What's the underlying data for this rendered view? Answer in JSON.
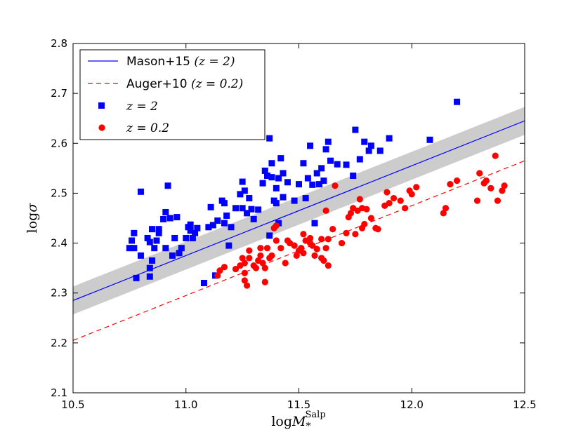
{
  "chart_data": {
    "type": "scatter",
    "title": "",
    "xlabel": {
      "base": "log",
      "symbol": "M",
      "sub": "*",
      "sup": "Salp"
    },
    "ylabel": {
      "base": "log",
      "symbol": "σ"
    },
    "xlim": [
      10.5,
      12.5
    ],
    "ylim": [
      2.1,
      2.8
    ],
    "xticks": [
      "10.5",
      "11.0",
      "11.5",
      "12.0",
      "12.5"
    ],
    "yticks": [
      "2.1",
      "2.2",
      "2.3",
      "2.4",
      "2.5",
      "2.6",
      "2.7",
      "2.8"
    ],
    "legend_position": "top-left",
    "lines": [
      {
        "name": "mason15",
        "label": "Mason+15 ",
        "math": "(z = 2)",
        "color": "#0000ff",
        "style": "solid",
        "x": [
          10.5,
          12.5
        ],
        "y": [
          2.285,
          2.645
        ],
        "band_halfwidth": 0.028,
        "band_color": "#cccccc"
      },
      {
        "name": "auger10",
        "label": "Auger+10 ",
        "math": "(z = 0.2)",
        "color": "#ff0000",
        "style": "dashed",
        "x": [
          10.5,
          12.5
        ],
        "y": [
          2.205,
          2.565
        ]
      }
    ],
    "series": [
      {
        "name": "z2",
        "label": "z = 2",
        "marker": "square",
        "color": "#0000ff",
        "points": [
          [
            10.75,
            2.39
          ],
          [
            10.76,
            2.405
          ],
          [
            10.77,
            2.42
          ],
          [
            10.77,
            2.39
          ],
          [
            10.78,
            2.33
          ],
          [
            10.8,
            2.503
          ],
          [
            10.8,
            2.375
          ],
          [
            10.83,
            2.41
          ],
          [
            10.84,
            2.402
          ],
          [
            10.84,
            2.333
          ],
          [
            10.84,
            2.35
          ],
          [
            10.85,
            2.365
          ],
          [
            10.85,
            2.428
          ],
          [
            10.86,
            2.39
          ],
          [
            10.87,
            2.405
          ],
          [
            10.88,
            2.428
          ],
          [
            10.88,
            2.42
          ],
          [
            10.9,
            2.448
          ],
          [
            10.91,
            2.462
          ],
          [
            10.91,
            2.39
          ],
          [
            10.92,
            2.515
          ],
          [
            10.93,
            2.45
          ],
          [
            10.94,
            2.375
          ],
          [
            10.95,
            2.41
          ],
          [
            10.96,
            2.452
          ],
          [
            10.97,
            2.38
          ],
          [
            10.98,
            2.39
          ],
          [
            11.0,
            2.41
          ],
          [
            11.01,
            2.432
          ],
          [
            11.02,
            2.437
          ],
          [
            11.02,
            2.425
          ],
          [
            11.03,
            2.41
          ],
          [
            11.04,
            2.42
          ],
          [
            11.05,
            2.43
          ],
          [
            11.08,
            2.32
          ],
          [
            11.1,
            2.432
          ],
          [
            11.11,
            2.472
          ],
          [
            11.12,
            2.436
          ],
          [
            11.14,
            2.445
          ],
          [
            11.16,
            2.485
          ],
          [
            11.17,
            2.48
          ],
          [
            11.17,
            2.44
          ],
          [
            11.18,
            2.455
          ],
          [
            11.19,
            2.395
          ],
          [
            11.2,
            2.432
          ],
          [
            11.22,
            2.47
          ],
          [
            11.24,
            2.498
          ],
          [
            11.25,
            2.523
          ],
          [
            11.25,
            2.47
          ],
          [
            11.26,
            2.505
          ],
          [
            11.27,
            2.46
          ],
          [
            11.28,
            2.49
          ],
          [
            11.29,
            2.468
          ],
          [
            11.3,
            2.448
          ],
          [
            11.32,
            2.467
          ],
          [
            11.34,
            2.52
          ],
          [
            11.35,
            2.545
          ],
          [
            11.36,
            2.535
          ],
          [
            11.37,
            2.61
          ],
          [
            11.38,
            2.56
          ],
          [
            11.38,
            2.532
          ],
          [
            11.39,
            2.485
          ],
          [
            11.4,
            2.48
          ],
          [
            11.4,
            2.51
          ],
          [
            11.41,
            2.53
          ],
          [
            11.42,
            2.57
          ],
          [
            11.43,
            2.54
          ],
          [
            11.43,
            2.492
          ],
          [
            11.45,
            2.522
          ],
          [
            11.48,
            2.485
          ],
          [
            11.5,
            2.518
          ],
          [
            11.52,
            2.56
          ],
          [
            11.53,
            2.49
          ],
          [
            11.54,
            2.53
          ],
          [
            11.55,
            2.595
          ],
          [
            11.56,
            2.517
          ],
          [
            11.57,
            2.44
          ],
          [
            11.58,
            2.54
          ],
          [
            11.59,
            2.518
          ],
          [
            11.6,
            2.55
          ],
          [
            11.61,
            2.525
          ],
          [
            11.62,
            2.588
          ],
          [
            11.63,
            2.603
          ],
          [
            11.64,
            2.565
          ],
          [
            11.67,
            2.558
          ],
          [
            11.71,
            2.557
          ],
          [
            11.74,
            2.535
          ],
          [
            11.75,
            2.627
          ],
          [
            11.77,
            2.568
          ],
          [
            11.79,
            2.603
          ],
          [
            11.81,
            2.585
          ],
          [
            11.82,
            2.595
          ],
          [
            11.86,
            2.585
          ],
          [
            11.9,
            2.61
          ],
          [
            12.08,
            2.607
          ],
          [
            12.2,
            2.683
          ],
          [
            11.13,
            2.335
          ],
          [
            11.37,
            2.415
          ],
          [
            11.41,
            2.44
          ]
        ]
      },
      {
        "name": "z02",
        "label": "z = 0.2",
        "marker": "circle",
        "color": "#ff0000",
        "points": [
          [
            11.14,
            2.335
          ],
          [
            11.15,
            2.345
          ],
          [
            11.17,
            2.352
          ],
          [
            11.22,
            2.348
          ],
          [
            11.24,
            2.355
          ],
          [
            11.25,
            2.37
          ],
          [
            11.26,
            2.36
          ],
          [
            11.26,
            2.34
          ],
          [
            11.26,
            2.325
          ],
          [
            11.27,
            2.315
          ],
          [
            11.28,
            2.385
          ],
          [
            11.28,
            2.37
          ],
          [
            11.3,
            2.355
          ],
          [
            11.31,
            2.35
          ],
          [
            11.32,
            2.365
          ],
          [
            11.33,
            2.375
          ],
          [
            11.33,
            2.39
          ],
          [
            11.34,
            2.36
          ],
          [
            11.35,
            2.35
          ],
          [
            11.35,
            2.322
          ],
          [
            11.36,
            2.39
          ],
          [
            11.37,
            2.37
          ],
          [
            11.38,
            2.375
          ],
          [
            11.39,
            2.43
          ],
          [
            11.4,
            2.435
          ],
          [
            11.4,
            2.405
          ],
          [
            11.42,
            2.39
          ],
          [
            11.44,
            2.36
          ],
          [
            11.46,
            2.4
          ],
          [
            11.48,
            2.395
          ],
          [
            11.49,
            2.375
          ],
          [
            11.5,
            2.385
          ],
          [
            11.51,
            2.39
          ],
          [
            11.52,
            2.38
          ],
          [
            11.52,
            2.418
          ],
          [
            11.53,
            2.405
          ],
          [
            11.55,
            2.41
          ],
          [
            11.56,
            2.395
          ],
          [
            11.57,
            2.375
          ],
          [
            11.58,
            2.388
          ],
          [
            11.6,
            2.408
          ],
          [
            11.6,
            2.37
          ],
          [
            11.61,
            2.365
          ],
          [
            11.62,
            2.39
          ],
          [
            11.63,
            2.355
          ],
          [
            11.63,
            2.408
          ],
          [
            11.65,
            2.428
          ],
          [
            11.66,
            2.515
          ],
          [
            11.69,
            2.4
          ],
          [
            11.71,
            2.42
          ],
          [
            11.72,
            2.452
          ],
          [
            11.73,
            2.46
          ],
          [
            11.74,
            2.47
          ],
          [
            11.75,
            2.418
          ],
          [
            11.76,
            2.465
          ],
          [
            11.77,
            2.488
          ],
          [
            11.78,
            2.47
          ],
          [
            11.78,
            2.43
          ],
          [
            11.79,
            2.438
          ],
          [
            11.8,
            2.468
          ],
          [
            11.82,
            2.45
          ],
          [
            11.84,
            2.43
          ],
          [
            11.85,
            2.428
          ],
          [
            11.88,
            2.475
          ],
          [
            11.89,
            2.502
          ],
          [
            11.9,
            2.48
          ],
          [
            11.92,
            2.49
          ],
          [
            11.95,
            2.485
          ],
          [
            11.97,
            2.47
          ],
          [
            11.99,
            2.505
          ],
          [
            12.0,
            2.498
          ],
          [
            12.02,
            2.512
          ],
          [
            12.14,
            2.46
          ],
          [
            12.15,
            2.47
          ],
          [
            12.17,
            2.518
          ],
          [
            12.2,
            2.525
          ],
          [
            12.29,
            2.485
          ],
          [
            12.3,
            2.54
          ],
          [
            12.32,
            2.52
          ],
          [
            12.33,
            2.525
          ],
          [
            12.35,
            2.51
          ],
          [
            12.37,
            2.575
          ],
          [
            12.38,
            2.485
          ],
          [
            12.4,
            2.505
          ],
          [
            12.41,
            2.515
          ],
          [
            11.62,
            2.465
          ],
          [
            11.45,
            2.405
          ],
          [
            11.55,
            2.4
          ]
        ]
      }
    ]
  }
}
